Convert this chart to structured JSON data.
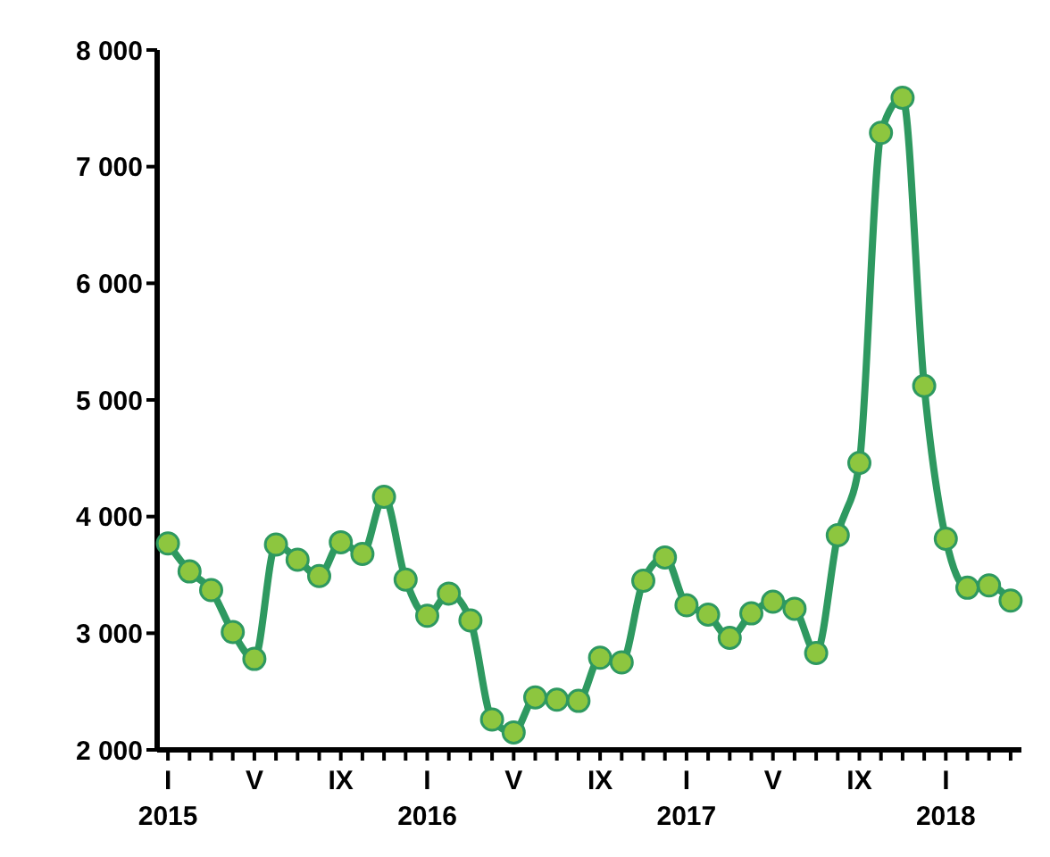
{
  "chart_data": {
    "type": "line",
    "categories": [
      "I\n2015",
      null,
      null,
      null,
      "V",
      null,
      null,
      null,
      "IX",
      null,
      null,
      null,
      "I\n2016",
      null,
      null,
      null,
      "V",
      null,
      null,
      null,
      "IX",
      null,
      null,
      null,
      "I\n2017",
      null,
      null,
      null,
      "V",
      null,
      null,
      null,
      "IX",
      null,
      null,
      null,
      "I\n2018",
      null,
      null,
      null
    ],
    "series": [
      {
        "color": "#2e9960",
        "values": [
          3770,
          3530,
          3370,
          3010,
          2780,
          3760,
          3630,
          3490,
          3780,
          3680,
          4170,
          3460,
          3150,
          3340,
          3110,
          2260,
          2150,
          2450,
          2430,
          2420,
          2790,
          2750,
          3450,
          3650,
          3240,
          3160,
          2960,
          3170,
          3270,
          3210,
          2830,
          3840,
          4460,
          7290,
          7590,
          5120,
          3810,
          3390,
          3410,
          3280
        ]
      }
    ],
    "ylim": [
      2000,
      8000
    ],
    "yticks": [
      {
        "value": 2000,
        "label": "2 000"
      },
      {
        "value": 3000,
        "label": "3 000"
      },
      {
        "value": 4000,
        "label": "4 000"
      },
      {
        "value": 5000,
        "label": "5 000"
      },
      {
        "value": 6000,
        "label": "6 000"
      },
      {
        "value": 7000,
        "label": "7 000"
      },
      {
        "value": 8000,
        "label": "8 000"
      }
    ],
    "grid": false,
    "legend": false,
    "marker": "circle",
    "line_style": "solid"
  }
}
